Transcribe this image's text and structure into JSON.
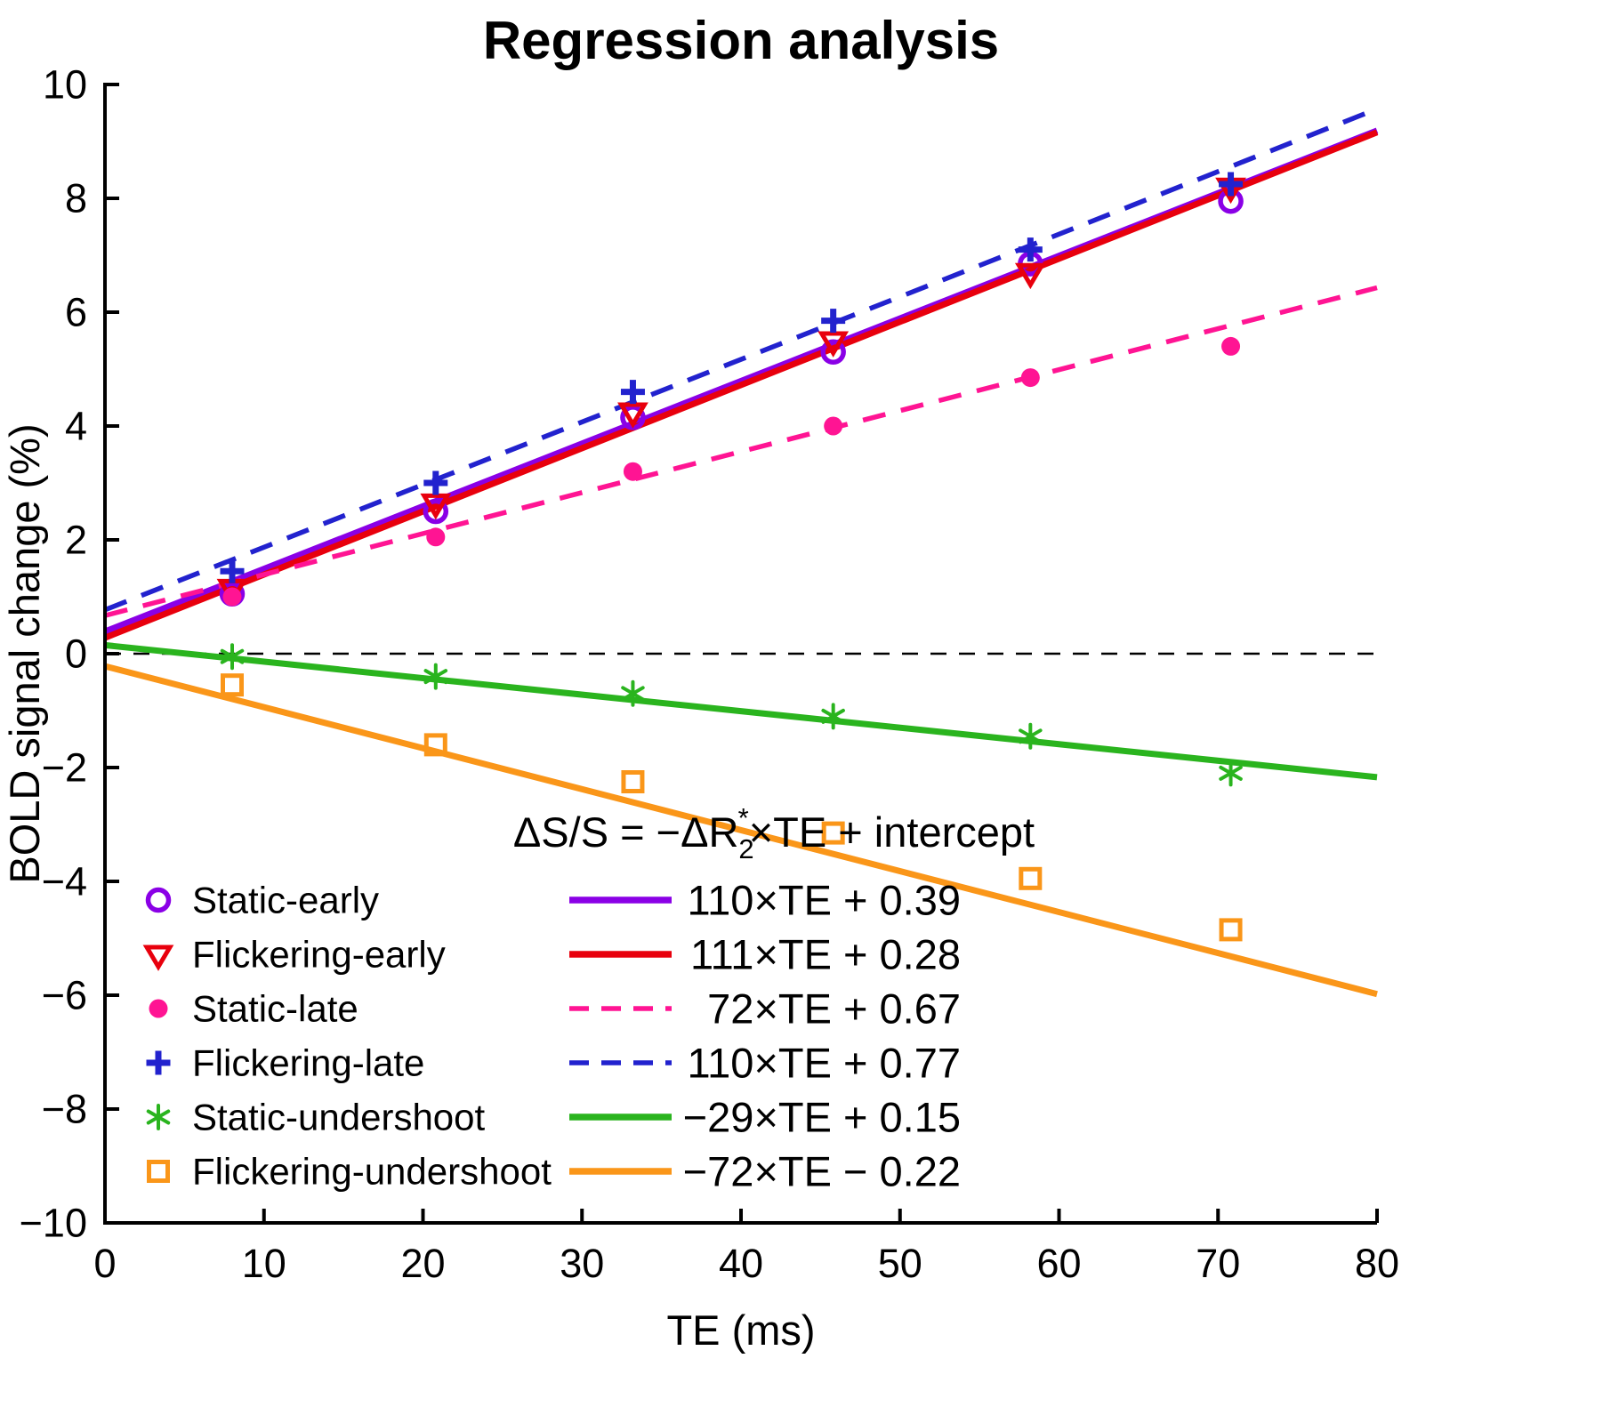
{
  "chart_data": {
    "type": "scatter",
    "title": "Regression analysis",
    "xlabel": "TE (ms)",
    "ylabel": "BOLD signal change (%)",
    "xlim": [
      0,
      80
    ],
    "ylim": [
      -10,
      10
    ],
    "grid": false,
    "xticks": [
      0,
      10,
      20,
      30,
      40,
      50,
      60,
      70,
      80
    ],
    "xtick_labels": [
      "0",
      "10",
      "20",
      "30",
      "40",
      "50",
      "60",
      "70",
      "80"
    ],
    "yticks": [
      -10,
      -8,
      -6,
      -4,
      -2,
      0,
      2,
      4,
      6,
      8,
      10
    ],
    "ytick_labels": [
      "−10",
      "−8",
      "−6",
      "−4",
      "−2",
      "0",
      "2",
      "4",
      "6",
      "8",
      "10"
    ],
    "zero_line_y": 0,
    "x_values": [
      8,
      20.8,
      33.2,
      45.8,
      58.2,
      70.8
    ],
    "equation_header": {
      "prefix": "ΔS/S = −ΔR",
      "sub": "2",
      "sup": "*",
      "suffix": "×TE + intercept"
    },
    "series": [
      {
        "id": "static-early",
        "name": "Static-early",
        "marker": "open-circle",
        "color": "#8A00E6",
        "line_style": "solid",
        "slope_per_ms": 0.11,
        "intercept": 0.39,
        "equation": "110×TE + 0.39",
        "values": [
          1.05,
          2.5,
          4.15,
          5.3,
          6.85,
          7.95
        ]
      },
      {
        "id": "flickering-early",
        "name": "Flickering-early",
        "marker": "open-triangle-down",
        "color": "#E8000D",
        "line_style": "solid",
        "slope_per_ms": 0.111,
        "intercept": 0.28,
        "equation": "111×TE + 0.28",
        "values": [
          1.15,
          2.65,
          4.25,
          5.5,
          6.7,
          8.2
        ]
      },
      {
        "id": "static-late",
        "name": "Static-late",
        "marker": "filled-circle",
        "color": "#FF1493",
        "line_style": "dashed",
        "slope_per_ms": 0.072,
        "intercept": 0.67,
        "equation": "72×TE + 0.67",
        "values": [
          1.0,
          2.05,
          3.2,
          4.0,
          4.85,
          5.4
        ]
      },
      {
        "id": "flickering-late",
        "name": "Flickering-late",
        "marker": "plus",
        "color": "#2222CE",
        "line_style": "dashed",
        "slope_per_ms": 0.11,
        "intercept": 0.77,
        "equation": "110×TE + 0.77",
        "values": [
          1.45,
          3.0,
          4.6,
          5.85,
          7.1,
          8.25
        ]
      },
      {
        "id": "static-undershoot",
        "name": "Static-undershoot",
        "marker": "asterisk",
        "color": "#2AB41E",
        "line_style": "solid",
        "slope_per_ms": -0.029,
        "intercept": 0.15,
        "equation": "−29×TE + 0.15",
        "values": [
          -0.05,
          -0.4,
          -0.7,
          -1.1,
          -1.45,
          -2.1
        ]
      },
      {
        "id": "flickering-undershoot",
        "name": "Flickering-undershoot",
        "marker": "open-square",
        "color": "#FA9619",
        "line_style": "solid",
        "slope_per_ms": -0.072,
        "intercept": -0.22,
        "equation": "−72×TE − 0.22",
        "values": [
          -0.55,
          -1.6,
          -2.25,
          -3.15,
          -3.95,
          -4.85
        ]
      }
    ]
  }
}
